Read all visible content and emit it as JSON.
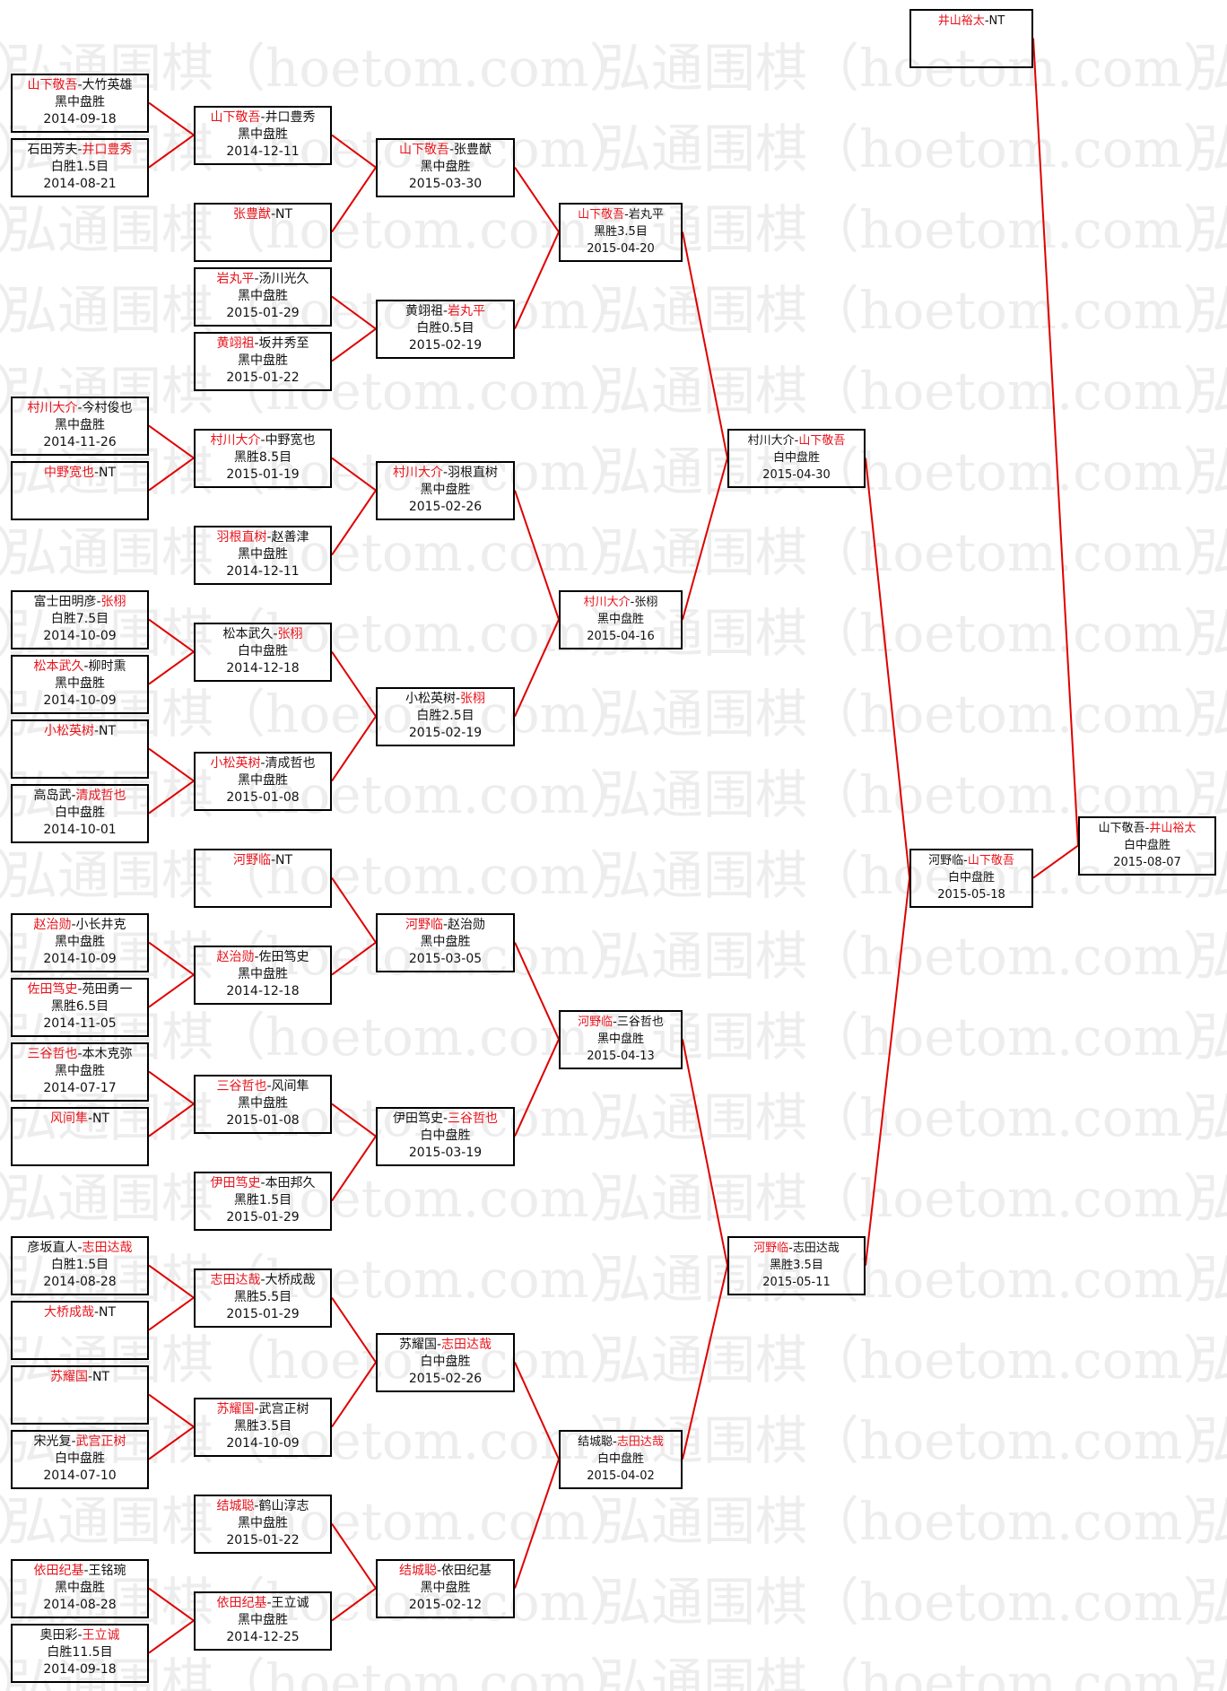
{
  "watermark": "弘通围棋（hoetom.com）",
  "colors": {
    "winner": "#e8141c",
    "connector": "#e00000",
    "border": "#000000"
  },
  "matches": [
    {
      "players": [
        "山下敬吾",
        "大竹英雄"
      ],
      "winner": 0,
      "result": "黑中盘胜",
      "date": "2014-09-18"
    },
    {
      "players": [
        "石田芳夫",
        "井口豊秀"
      ],
      "winner": 1,
      "result": "白胜1.5目",
      "date": "2014-08-21"
    },
    {
      "players": [
        "村川大介",
        "今村俊也"
      ],
      "winner": 0,
      "result": "黑中盘胜",
      "date": "2014-11-26"
    },
    {
      "players": [
        "中野宽也",
        "NT"
      ],
      "winner": 0,
      "result": "",
      "date": ""
    },
    {
      "players": [
        "富士田明彦",
        "张栩"
      ],
      "winner": 1,
      "result": "白胜7.5目",
      "date": "2014-10-09"
    },
    {
      "players": [
        "松本武久",
        "柳时熏"
      ],
      "winner": 0,
      "result": "黑中盘胜",
      "date": "2014-10-09"
    },
    {
      "players": [
        "小松英树",
        "NT"
      ],
      "winner": 0,
      "result": "",
      "date": ""
    },
    {
      "players": [
        "高岛武",
        "清成哲也"
      ],
      "winner": 1,
      "result": "白中盘胜",
      "date": "2014-10-01"
    },
    {
      "players": [
        "赵治勋",
        "小长井克"
      ],
      "winner": 0,
      "result": "黑中盘胜",
      "date": "2014-10-09"
    },
    {
      "players": [
        "佐田笃史",
        "苑田勇一"
      ],
      "winner": 0,
      "result": "黑胜6.5目",
      "date": "2014-11-05"
    },
    {
      "players": [
        "三谷哲也",
        "本木克弥"
      ],
      "winner": 0,
      "result": "黑中盘胜",
      "date": "2014-07-17"
    },
    {
      "players": [
        "风间隼",
        "NT"
      ],
      "winner": 0,
      "result": "",
      "date": ""
    },
    {
      "players": [
        "彦坂直人",
        "志田达哉"
      ],
      "winner": 1,
      "result": "白胜1.5目",
      "date": "2014-08-28"
    },
    {
      "players": [
        "大桥成哉",
        "NT"
      ],
      "winner": 0,
      "result": "",
      "date": ""
    },
    {
      "players": [
        "苏耀国",
        "NT"
      ],
      "winner": 0,
      "result": "",
      "date": ""
    },
    {
      "players": [
        "宋光复",
        "武宫正树"
      ],
      "winner": 1,
      "result": "白中盘胜",
      "date": "2014-07-10"
    },
    {
      "players": [
        "依田纪基",
        "王铭琬"
      ],
      "winner": 0,
      "result": "黑中盘胜",
      "date": "2014-08-28"
    },
    {
      "players": [
        "奥田彩",
        "王立诚"
      ],
      "winner": 1,
      "result": "白胜11.5目",
      "date": "2014-09-18"
    },
    {
      "players": [
        "山下敬吾",
        "井口豊秀"
      ],
      "winner": 0,
      "result": "黑中盘胜",
      "date": "2014-12-11"
    },
    {
      "players": [
        "张豊猷",
        "NT"
      ],
      "winner": 0,
      "result": "",
      "date": ""
    },
    {
      "players": [
        "岩丸平",
        "汤川光久"
      ],
      "winner": 0,
      "result": "黑中盘胜",
      "date": "2015-01-29"
    },
    {
      "players": [
        "黄翊祖",
        "坂井秀至"
      ],
      "winner": 0,
      "result": "黑中盘胜",
      "date": "2015-01-22"
    },
    {
      "players": [
        "村川大介",
        "中野宽也"
      ],
      "winner": 0,
      "result": "黑胜8.5目",
      "date": "2015-01-19"
    },
    {
      "players": [
        "羽根直树",
        "赵善津"
      ],
      "winner": 0,
      "result": "黑中盘胜",
      "date": "2014-12-11"
    },
    {
      "players": [
        "松本武久",
        "张栩"
      ],
      "winner": 1,
      "result": "白中盘胜",
      "date": "2014-12-18"
    },
    {
      "players": [
        "小松英树",
        "清成哲也"
      ],
      "winner": 0,
      "result": "黑中盘胜",
      "date": "2015-01-08"
    },
    {
      "players": [
        "河野临",
        "NT"
      ],
      "winner": 0,
      "result": "",
      "date": ""
    },
    {
      "players": [
        "赵治勋",
        "佐田笃史"
      ],
      "winner": 0,
      "result": "黑中盘胜",
      "date": "2014-12-18"
    },
    {
      "players": [
        "三谷哲也",
        "风间隼"
      ],
      "winner": 0,
      "result": "黑中盘胜",
      "date": "2015-01-08"
    },
    {
      "players": [
        "伊田笃史",
        "本田邦久"
      ],
      "winner": 0,
      "result": "黑胜1.5目",
      "date": "2015-01-29"
    },
    {
      "players": [
        "志田达哉",
        "大桥成哉"
      ],
      "winner": 0,
      "result": "黑胜5.5目",
      "date": "2015-01-29"
    },
    {
      "players": [
        "苏耀国",
        "武宫正树"
      ],
      "winner": 0,
      "result": "黑胜3.5目",
      "date": "2014-10-09"
    },
    {
      "players": [
        "结城聪",
        "鹤山淳志"
      ],
      "winner": 0,
      "result": "黑中盘胜",
      "date": "2015-01-22"
    },
    {
      "players": [
        "依田纪基",
        "王立诚"
      ],
      "winner": 0,
      "result": "黑中盘胜",
      "date": "2014-12-25"
    },
    {
      "players": [
        "山下敬吾",
        "张豊猷"
      ],
      "winner": 0,
      "result": "黑中盘胜",
      "date": "2015-03-30"
    },
    {
      "players": [
        "黄翊祖",
        "岩丸平"
      ],
      "winner": 1,
      "result": "白胜0.5目",
      "date": "2015-02-19"
    },
    {
      "players": [
        "村川大介",
        "羽根直树"
      ],
      "winner": 0,
      "result": "黑中盘胜",
      "date": "2015-02-26"
    },
    {
      "players": [
        "小松英树",
        "张栩"
      ],
      "winner": 1,
      "result": "白胜2.5目",
      "date": "2015-02-19"
    },
    {
      "players": [
        "河野临",
        "赵治勋"
      ],
      "winner": 0,
      "result": "黑中盘胜",
      "date": "2015-03-05"
    },
    {
      "players": [
        "伊田笃史",
        "三谷哲也"
      ],
      "winner": 1,
      "result": "白中盘胜",
      "date": "2015-03-19"
    },
    {
      "players": [
        "苏耀国",
        "志田达哉"
      ],
      "winner": 1,
      "result": "白中盘胜",
      "date": "2015-02-26"
    },
    {
      "players": [
        "结城聪",
        "依田纪基"
      ],
      "winner": 0,
      "result": "黑中盘胜",
      "date": "2015-02-12"
    },
    {
      "players": [
        "山下敬吾",
        "岩丸平"
      ],
      "winner": 0,
      "result": "黑胜3.5目",
      "date": "2015-04-20"
    },
    {
      "players": [
        "村川大介",
        "张栩"
      ],
      "winner": 0,
      "result": "黑中盘胜",
      "date": "2015-04-16"
    },
    {
      "players": [
        "河野临",
        "三谷哲也"
      ],
      "winner": 0,
      "result": "黑中盘胜",
      "date": "2015-04-13"
    },
    {
      "players": [
        "结城聪",
        "志田达哉"
      ],
      "winner": 1,
      "result": "白中盘胜",
      "date": "2015-04-02"
    },
    {
      "players": [
        "村川大介",
        "山下敬吾"
      ],
      "winner": 1,
      "result": "白中盘胜",
      "date": "2015-04-30"
    },
    {
      "players": [
        "河野临",
        "志田达哉"
      ],
      "winner": 0,
      "result": "黑胜3.5目",
      "date": "2015-05-11"
    },
    {
      "players": [
        "井山裕太",
        "NT"
      ],
      "winner": 0,
      "result": "",
      "date": ""
    },
    {
      "players": [
        "河野临",
        "山下敬吾"
      ],
      "winner": 1,
      "result": "白中盘胜",
      "date": "2015-05-18"
    },
    {
      "players": [
        "山下敬吾",
        "井山裕太"
      ],
      "winner": 1,
      "result": "白中盘胜",
      "date": "2015-08-07"
    }
  ]
}
